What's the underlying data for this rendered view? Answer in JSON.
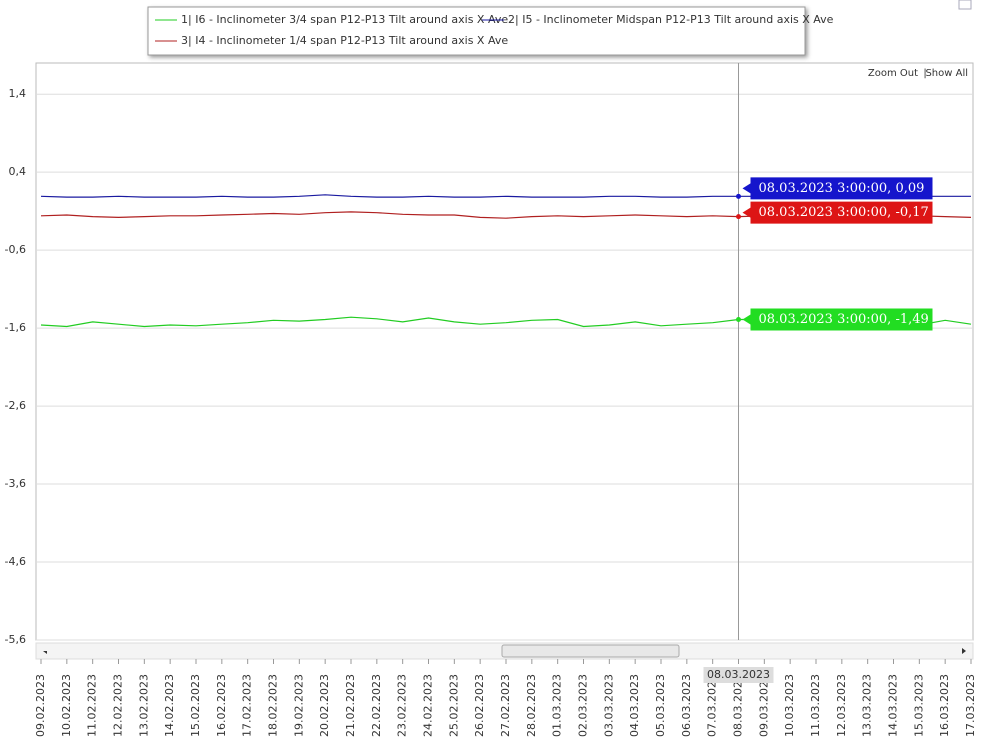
{
  "chart_data": {
    "type": "line",
    "legend": "top",
    "zoom_links": [
      "Zoom Out",
      "Show All"
    ],
    "x": [
      "09.02.2023",
      "10.02.2023",
      "11.02.2023",
      "12.02.2023",
      "13.02.2023",
      "14.02.2023",
      "15.02.2023",
      "16.02.2023",
      "17.02.2023",
      "18.02.2023",
      "19.02.2023",
      "20.02.2023",
      "21.02.2023",
      "22.02.2023",
      "23.02.2023",
      "24.02.2023",
      "25.02.2023",
      "26.02.2023",
      "27.02.2023",
      "28.02.2023",
      "01.03.2023",
      "02.03.2023",
      "03.03.2023",
      "04.03.2023",
      "05.03.2023",
      "06.03.2023",
      "07.03.2023",
      "08.03.2023",
      "09.03.2023",
      "10.03.2023",
      "11.03.2023",
      "12.03.2023",
      "13.03.2023",
      "14.03.2023",
      "15.03.2023",
      "16.03.2023",
      "17.03.2023"
    ],
    "ylim": [
      -5.6,
      1.8
    ],
    "yticks": [
      {
        "value": 1.4,
        "label": "1,4"
      },
      {
        "value": 0.4,
        "label": "0,4"
      },
      {
        "value": -0.6,
        "label": "-0,6"
      },
      {
        "value": -1.6,
        "label": "-1,6"
      },
      {
        "value": -2.6,
        "label": "-2,6"
      },
      {
        "value": -3.6,
        "label": "-3,6"
      },
      {
        "value": -4.6,
        "label": "-4,6"
      },
      {
        "value": -5.6,
        "label": "-5,6"
      }
    ],
    "grid": true,
    "series": [
      {
        "name": "1| I6 - Inclinometer 3/4 span P12-P13 Tilt around axis X Ave",
        "color": "#22cc22",
        "values": [
          -1.56,
          -1.58,
          -1.52,
          -1.55,
          -1.58,
          -1.56,
          -1.57,
          -1.55,
          -1.53,
          -1.5,
          -1.51,
          -1.49,
          -1.46,
          -1.48,
          -1.52,
          -1.47,
          -1.52,
          -1.55,
          -1.53,
          -1.5,
          -1.49,
          -1.58,
          -1.56,
          -1.52,
          -1.57,
          -1.55,
          -1.53,
          -1.49,
          -1.49,
          -1.49,
          -1.51,
          -1.54,
          -1.52,
          -1.53,
          -1.56,
          -1.5,
          -1.55
        ]
      },
      {
        "name": "2| I5 - Inclinometer Midspan P12-P13 Tilt around axis X Ave",
        "color": "#1a1aa0",
        "values": [
          0.09,
          0.08,
          0.08,
          0.09,
          0.08,
          0.08,
          0.08,
          0.09,
          0.08,
          0.08,
          0.09,
          0.11,
          0.09,
          0.08,
          0.08,
          0.09,
          0.08,
          0.08,
          0.09,
          0.08,
          0.08,
          0.08,
          0.09,
          0.09,
          0.08,
          0.08,
          0.09,
          0.09,
          0.09,
          0.08,
          0.09,
          0.09,
          0.09,
          0.09,
          0.09,
          0.09,
          0.09
        ]
      },
      {
        "name": "3| I4 - Inclinometer 1/4 span P12-P13 Tilt around axis X Ave",
        "color": "#b02020",
        "values": [
          -0.16,
          -0.15,
          -0.17,
          -0.18,
          -0.17,
          -0.16,
          -0.16,
          -0.15,
          -0.14,
          -0.13,
          -0.14,
          -0.12,
          -0.11,
          -0.12,
          -0.14,
          -0.15,
          -0.15,
          -0.18,
          -0.19,
          -0.17,
          -0.16,
          -0.17,
          -0.16,
          -0.15,
          -0.16,
          -0.17,
          -0.16,
          -0.17,
          -0.16,
          -0.15,
          -0.16,
          -0.17,
          -0.16,
          -0.15,
          -0.16,
          -0.17,
          -0.18
        ]
      }
    ],
    "crosshair": {
      "x": "08.03.2023",
      "label": "08.03.2023"
    },
    "tooltips": [
      {
        "text": "08.03.2023 3:00:00, 0,09",
        "value": 0.09,
        "color": "#1515cc"
      },
      {
        "text": "08.03.2023 3:00:00, -0,17",
        "value": -0.17,
        "color": "#dd1515"
      },
      {
        "text": "08.03.2023 3:00:00, -1,49",
        "value": -1.49,
        "color": "#22dd22"
      }
    ]
  }
}
